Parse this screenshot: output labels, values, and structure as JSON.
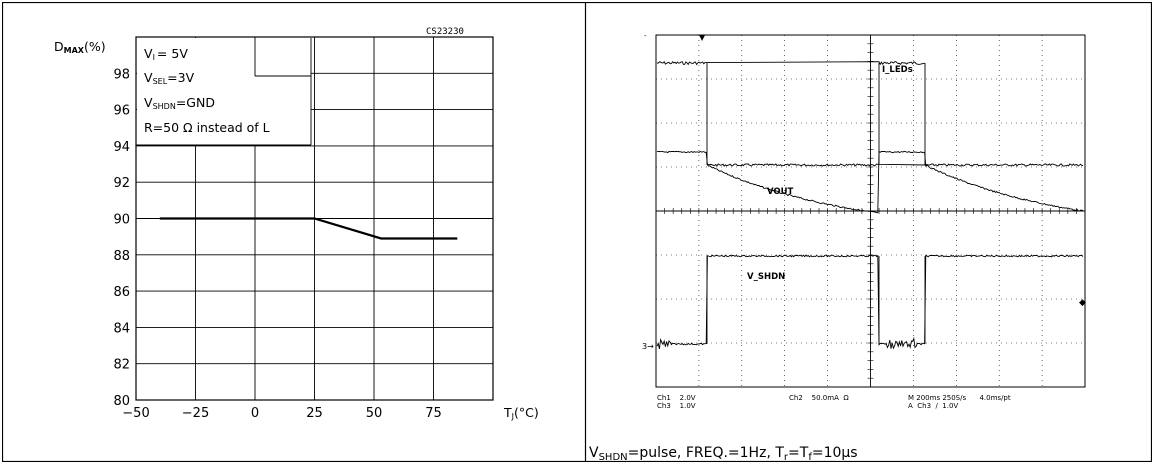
{
  "chart_data": [
    {
      "type": "line",
      "code": "CS23230",
      "ylabel": "DMAX(%)",
      "ylabel_main": "D",
      "ylabel_sub": "MAX",
      "ylabel_suffix": "(%)",
      "xlabel": "TJ(°C)",
      "xlabel_main": "T",
      "xlabel_sub": "J",
      "xlabel_suffix": "(°C)",
      "xlim": [
        -50,
        100
      ],
      "ylim": [
        80,
        100
      ],
      "x_ticks": [
        "−50",
        "−25",
        "0",
        "25",
        "50",
        "75"
      ],
      "y_ticks": [
        "80",
        "82",
        "84",
        "86",
        "88",
        "90",
        "92",
        "94",
        "96",
        "98"
      ],
      "grid": true,
      "conditions": [
        {
          "main": "V",
          "sub": "I",
          "rest": "= 5V"
        },
        {
          "main": "V",
          "sub": "SEL",
          "rest": "=3V"
        },
        {
          "main": "V",
          "sub": "SHDN",
          "rest": "=GND"
        },
        {
          "main": "",
          "sub": "",
          "rest": "R=50 Ω instead of L"
        }
      ],
      "series": [
        {
          "x": [
            -40,
            25,
            53,
            85
          ],
          "y": [
            90,
            90,
            88.9,
            88.9
          ]
        }
      ]
    },
    {
      "type": "line",
      "channel_labels": [
        "I_LEDs",
        "VOUT",
        "V_SHDN"
      ],
      "marker": "3",
      "settings": {
        "left_line1": "Ch1    2.0V",
        "left_line2": "Ch3    1.0V",
        "mid_line1": "Ch2    50.0mA  Ω",
        "right_line1": "M 200ms 250S/s      4.0ms/pt",
        "right_line2": "A  Ch3  ∕  1.0V"
      },
      "caption": {
        "a": "V",
        "a_sub": "SHDN",
        "b": "=pulse, FREQ.=1Hz, T",
        "b_sub": "r",
        "c": "=T",
        "c_sub": "f",
        "d": "=10µs"
      }
    }
  ]
}
